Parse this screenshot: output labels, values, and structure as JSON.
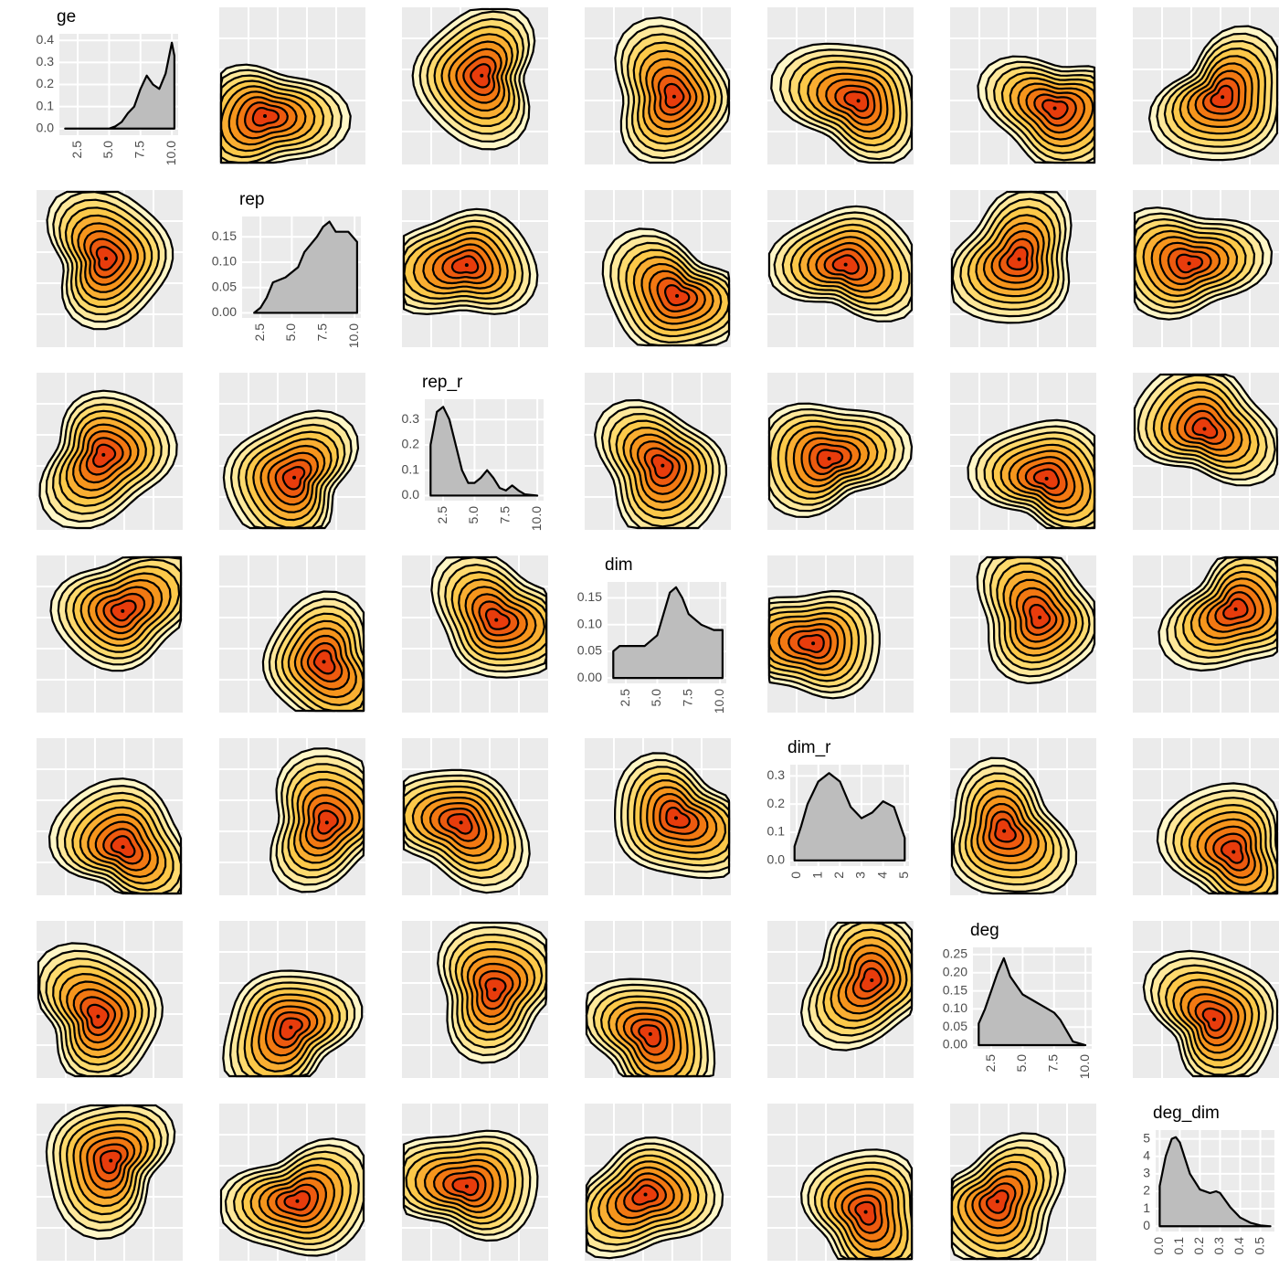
{
  "chart_data": [
    {
      "type": "area",
      "title": "ge",
      "color": "#bdbdbd",
      "x": [
        1.5,
        2,
        3,
        4,
        5,
        5.5,
        6,
        6.5,
        7,
        7.5,
        8,
        8.5,
        9,
        9.5,
        10,
        10.2
      ],
      "values": [
        0,
        0,
        0,
        0,
        0,
        0.01,
        0.03,
        0.07,
        0.1,
        0.18,
        0.24,
        0.2,
        0.18,
        0.25,
        0.39,
        0.33
      ],
      "xlim": [
        1.04,
        10.5
      ],
      "ylim": [
        -0.03,
        0.43
      ],
      "xticks": [
        2.5,
        {
          "value": 5,
          "label": "5.0"
        },
        7.5,
        {
          "value": 10,
          "label": "10.0"
        }
      ],
      "yticks": [
        {
          "value": 0,
          "label": "0.0"
        },
        0.1,
        0.2,
        0.3,
        0.4
      ]
    },
    {
      "type": "area",
      "title": "rep",
      "color": "#bdbdbd",
      "x": [
        2,
        2.5,
        3,
        3.5,
        4.5,
        5.5,
        6,
        7,
        7.5,
        8,
        8.5,
        9.5,
        10.2
      ],
      "values": [
        0,
        0.01,
        0.03,
        0.06,
        0.07,
        0.09,
        0.12,
        0.15,
        0.17,
        0.18,
        0.16,
        0.16,
        0.14
      ],
      "xlim": [
        1.04,
        10.5
      ],
      "ylim": [
        -0.01,
        0.19
      ],
      "xticks": [
        2.5,
        {
          "value": 5,
          "label": "5.0"
        },
        7.5,
        {
          "value": 10,
          "label": "10.0"
        }
      ],
      "yticks": [
        {
          "value": 0,
          "label": "0.00"
        },
        {
          "value": 0.05,
          "label": "0.05"
        },
        {
          "value": 0.1,
          "label": "0.10"
        },
        {
          "value": 0.15,
          "label": "0.15"
        }
      ]
    },
    {
      "type": "area",
      "title": "rep_r",
      "color": "#bdbdbd",
      "x": [
        1.5,
        2,
        2.5,
        3,
        3.5,
        4,
        4.5,
        5,
        5.5,
        6,
        6.5,
        7,
        7.5,
        8,
        8.5,
        9,
        10
      ],
      "values": [
        0.2,
        0.33,
        0.35,
        0.3,
        0.2,
        0.1,
        0.05,
        0.05,
        0.07,
        0.1,
        0.07,
        0.03,
        0.02,
        0.04,
        0.02,
        0.005,
        0
      ],
      "xlim": [
        1.04,
        10.5
      ],
      "ylim": [
        -0.02,
        0.38
      ],
      "xticks": [
        2.5,
        {
          "value": 5,
          "label": "5.0"
        },
        7.5,
        {
          "value": 10,
          "label": "10.0"
        }
      ],
      "yticks": [
        {
          "value": 0,
          "label": "0.0"
        },
        0.1,
        0.2,
        0.3
      ]
    },
    {
      "type": "area",
      "title": "dim",
      "color": "#bdbdbd",
      "x": [
        1.5,
        2,
        3,
        4,
        5,
        5.5,
        6,
        6.5,
        7,
        7.5,
        8.5,
        9.5,
        10.2
      ],
      "values": [
        0.05,
        0.06,
        0.06,
        0.06,
        0.08,
        0.12,
        0.16,
        0.17,
        0.15,
        0.12,
        0.1,
        0.09,
        0.09
      ],
      "xlim": [
        1.04,
        10.5
      ],
      "ylim": [
        -0.01,
        0.18
      ],
      "xticks": [
        2.5,
        {
          "value": 5,
          "label": "5.0"
        },
        7.5,
        {
          "value": 10,
          "label": "10.0"
        }
      ],
      "yticks": [
        {
          "value": 0,
          "label": "0.00"
        },
        {
          "value": 0.05,
          "label": "0.05"
        },
        {
          "value": 0.1,
          "label": "0.10"
        },
        {
          "value": 0.15,
          "label": "0.15"
        }
      ]
    },
    {
      "type": "area",
      "title": "dim_r",
      "color": "#bdbdbd",
      "x": [
        -0.1,
        0.2,
        0.5,
        1,
        1.5,
        2,
        2.5,
        3,
        3.5,
        4,
        4.5,
        5
      ],
      "values": [
        0.05,
        0.12,
        0.2,
        0.28,
        0.31,
        0.28,
        0.19,
        0.15,
        0.17,
        0.21,
        0.19,
        0.08
      ],
      "xlim": [
        -0.3,
        5.2
      ],
      "ylim": [
        -0.02,
        0.34
      ],
      "xticks": [
        0,
        1,
        2,
        3,
        4,
        5
      ],
      "yticks": [
        {
          "value": 0,
          "label": "0.0"
        },
        0.1,
        0.2,
        0.3
      ]
    },
    {
      "type": "area",
      "title": "deg",
      "color": "#bdbdbd",
      "x": [
        1.5,
        2,
        3,
        3.5,
        4,
        5,
        5.5,
        6,
        6.5,
        7,
        7.5,
        8,
        9,
        10
      ],
      "values": [
        0.06,
        0.1,
        0.2,
        0.24,
        0.19,
        0.14,
        0.13,
        0.12,
        0.11,
        0.1,
        0.09,
        0.07,
        0.01,
        0
      ],
      "xlim": [
        1.04,
        10.5
      ],
      "ylim": [
        -0.01,
        0.27
      ],
      "xticks": [
        2.5,
        {
          "value": 5,
          "label": "5.0"
        },
        7.5,
        {
          "value": 10,
          "label": "10.0"
        }
      ],
      "yticks": [
        {
          "value": 0,
          "label": "0.00"
        },
        {
          "value": 0.05,
          "label": "0.05"
        },
        {
          "value": 0.1,
          "label": "0.10"
        },
        {
          "value": 0.15,
          "label": "0.15"
        },
        {
          "value": 0.2,
          "label": "0.20"
        },
        {
          "value": 0.25,
          "label": "0.25"
        }
      ]
    },
    {
      "type": "area",
      "title": "deg_dim",
      "color": "#bdbdbd",
      "x": [
        0,
        0.03,
        0.06,
        0.08,
        0.1,
        0.15,
        0.2,
        0.25,
        0.28,
        0.3,
        0.35,
        0.4,
        0.45,
        0.5,
        0.55
      ],
      "values": [
        2.3,
        4,
        5,
        5.1,
        4.8,
        3,
        2.1,
        1.9,
        2,
        1.9,
        1.1,
        0.5,
        0.2,
        0.05,
        0
      ],
      "xlim": [
        -0.02,
        0.57
      ],
      "ylim": [
        -0.3,
        5.5
      ],
      "xticks": [
        {
          "value": 0,
          "label": "0.0"
        },
        0.1,
        0.2,
        0.3,
        0.4,
        0.5
      ],
      "yticks": [
        0,
        1,
        2,
        3,
        4,
        5
      ]
    }
  ]
}
